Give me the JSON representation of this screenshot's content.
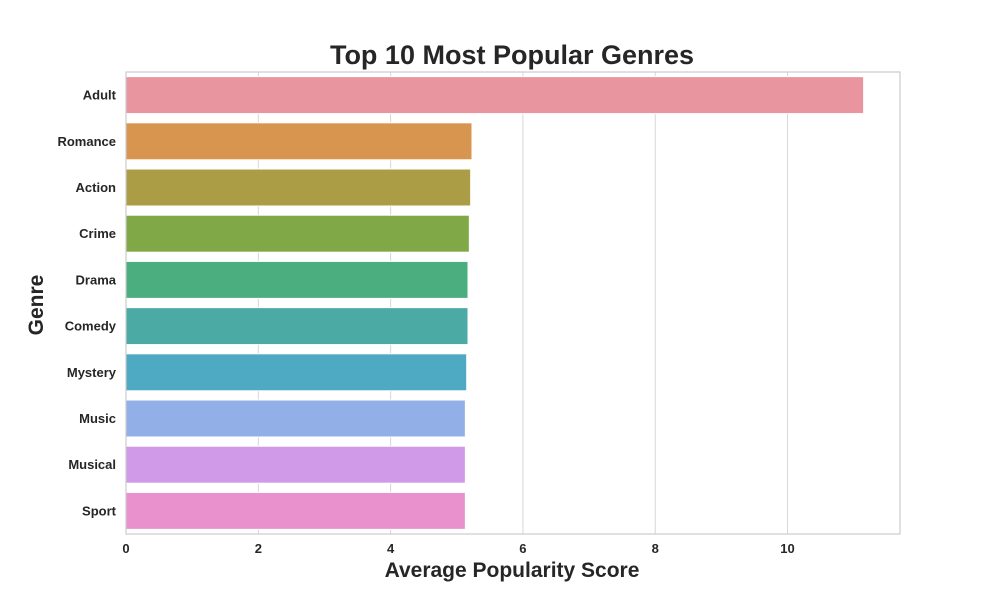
{
  "chart_data": {
    "type": "bar",
    "orientation": "horizontal",
    "title": "Top 10 Most Popular Genres",
    "xlabel": "Average Popularity Score",
    "ylabel": "Genre",
    "categories": [
      "Adult",
      "Romance",
      "Action",
      "Crime",
      "Drama",
      "Comedy",
      "Mystery",
      "Music",
      "Musical",
      "Sport"
    ],
    "values": [
      11.15,
      5.23,
      5.21,
      5.19,
      5.17,
      5.17,
      5.15,
      5.13,
      5.13,
      5.13
    ],
    "colors": [
      "#e8959f",
      "#d89550",
      "#aa9d46",
      "#81a846",
      "#4bae7e",
      "#4caaa5",
      "#4eaac3",
      "#93afe8",
      "#d09ae8",
      "#e891cc"
    ],
    "xlim": [
      0,
      11.7
    ],
    "xticks": [
      0,
      2,
      4,
      6,
      8,
      10
    ],
    "xtick_labels": [
      "0",
      "2",
      "4",
      "6",
      "8",
      "10"
    ],
    "grid": "x",
    "legend": "none"
  }
}
